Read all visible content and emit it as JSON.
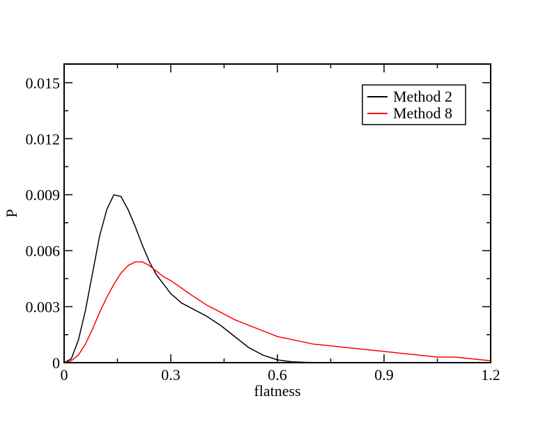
{
  "chart_data": {
    "type": "line",
    "title": "",
    "xlabel": "flatness",
    "ylabel": "P",
    "xlim": [
      0,
      1.2
    ],
    "ylim": [
      0,
      0.016
    ],
    "x_ticks": [
      "0",
      "0.3",
      "0.6",
      "0.9",
      "1.2"
    ],
    "y_ticks": [
      "0",
      "0.003",
      "0.006",
      "0.009",
      "0.012",
      "0.015"
    ],
    "grid": false,
    "legend_position": "top-right",
    "series": [
      {
        "name": "Method 2",
        "color": "#000000",
        "x": [
          0.0,
          0.02,
          0.04,
          0.06,
          0.08,
          0.1,
          0.12,
          0.14,
          0.16,
          0.18,
          0.2,
          0.22,
          0.24,
          0.26,
          0.28,
          0.3,
          0.33,
          0.36,
          0.4,
          0.44,
          0.48,
          0.52,
          0.56,
          0.6,
          0.64,
          0.68,
          0.72,
          0.8,
          0.9,
          1.0,
          1.1,
          1.2
        ],
        "y": [
          0.0,
          0.0002,
          0.0012,
          0.0028,
          0.0048,
          0.0068,
          0.0082,
          0.009,
          0.0089,
          0.0082,
          0.0073,
          0.0063,
          0.0054,
          0.0047,
          0.0042,
          0.0037,
          0.0032,
          0.0029,
          0.0025,
          0.002,
          0.0014,
          0.0008,
          0.0004,
          0.00015,
          5e-05,
          2e-05,
          0.0,
          0.0,
          0.0,
          0.0,
          0.0,
          0.0
        ]
      },
      {
        "name": "Method 8",
        "color": "#ff0000",
        "x": [
          0.0,
          0.02,
          0.04,
          0.06,
          0.08,
          0.1,
          0.12,
          0.14,
          0.16,
          0.18,
          0.2,
          0.22,
          0.24,
          0.26,
          0.28,
          0.3,
          0.33,
          0.36,
          0.4,
          0.44,
          0.48,
          0.52,
          0.56,
          0.6,
          0.65,
          0.7,
          0.75,
          0.8,
          0.85,
          0.9,
          0.95,
          1.0,
          1.05,
          1.1,
          1.15,
          1.2
        ],
        "y": [
          0.0,
          0.0001,
          0.0004,
          0.001,
          0.0018,
          0.0027,
          0.0035,
          0.0042,
          0.0048,
          0.0052,
          0.0054,
          0.0054,
          0.0052,
          0.0049,
          0.0046,
          0.0044,
          0.004,
          0.0036,
          0.0031,
          0.0027,
          0.0023,
          0.002,
          0.0017,
          0.0014,
          0.0012,
          0.001,
          0.0009,
          0.0008,
          0.0007,
          0.0006,
          0.0005,
          0.0004,
          0.0003,
          0.0003,
          0.0002,
          0.0001
        ]
      }
    ]
  }
}
